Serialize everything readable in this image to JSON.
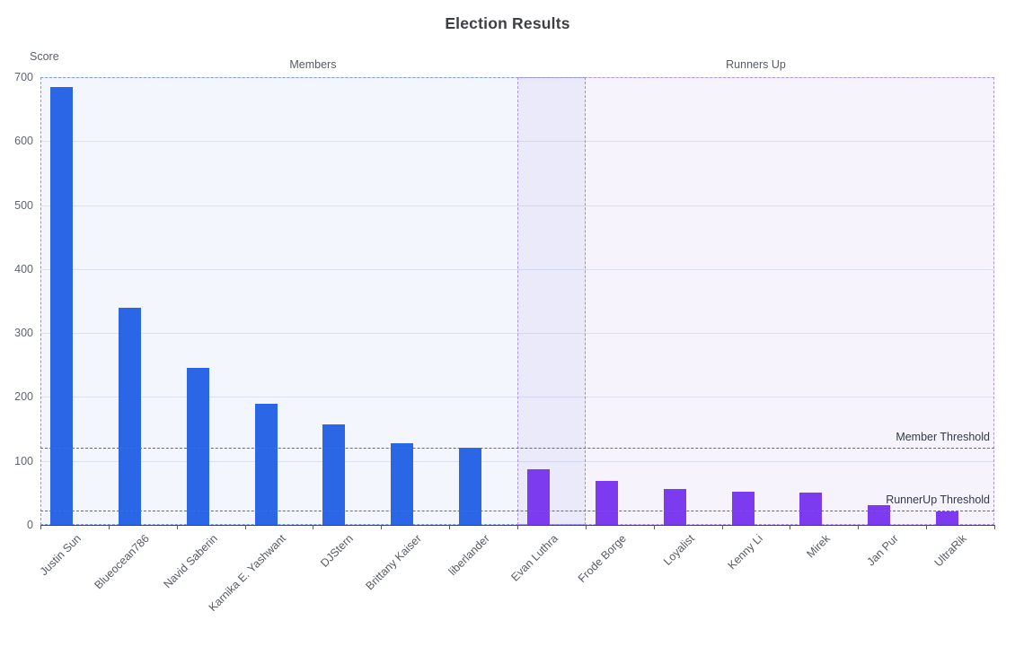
{
  "title": "Election Results",
  "chart_data": {
    "type": "bar",
    "title": "Election Results",
    "xlabel": "",
    "ylabel": "Score",
    "ylim": [
      0,
      700
    ],
    "yticks": [
      0,
      100,
      200,
      300,
      400,
      500,
      600,
      700
    ],
    "grid": true,
    "categories": [
      "Justin Sun",
      "Blueocean786",
      "Navid Saberin",
      "Karnika E. Yashwant",
      "DJStern",
      "Brittany Kaiser",
      "liberlander",
      "Evan Luthra",
      "Frode Borge",
      "Loyalist",
      "Kenny Li",
      "Mirek",
      "Jan Pur",
      "UltraRik"
    ],
    "values": [
      685,
      340,
      245,
      190,
      157,
      128,
      121,
      87,
      69,
      56,
      52,
      50,
      31,
      21
    ],
    "series": [
      {
        "name": "Members",
        "color": "#2b66e7",
        "category_range": [
          0,
          7
        ]
      },
      {
        "name": "Runners Up",
        "color": "#7c3bee",
        "category_range": [
          7,
          14
        ]
      }
    ],
    "regions": [
      {
        "label": "Members",
        "from_slot": 0,
        "to_slot": 8,
        "border_color": "#7e9bee",
        "fill": "rgba(110,145,235,0.08)"
      },
      {
        "label": "Runners Up",
        "from_slot": 7,
        "to_slot": 14,
        "border_color": "#b193ef",
        "fill": "rgba(140,100,235,0.08)"
      }
    ],
    "thresholds": [
      {
        "label": "Member Threshold",
        "value": 120
      },
      {
        "label": "RunnerUp Threshold",
        "value": 22
      }
    ],
    "threshold_line_color": "#3a6de0",
    "legend_position": "none"
  }
}
